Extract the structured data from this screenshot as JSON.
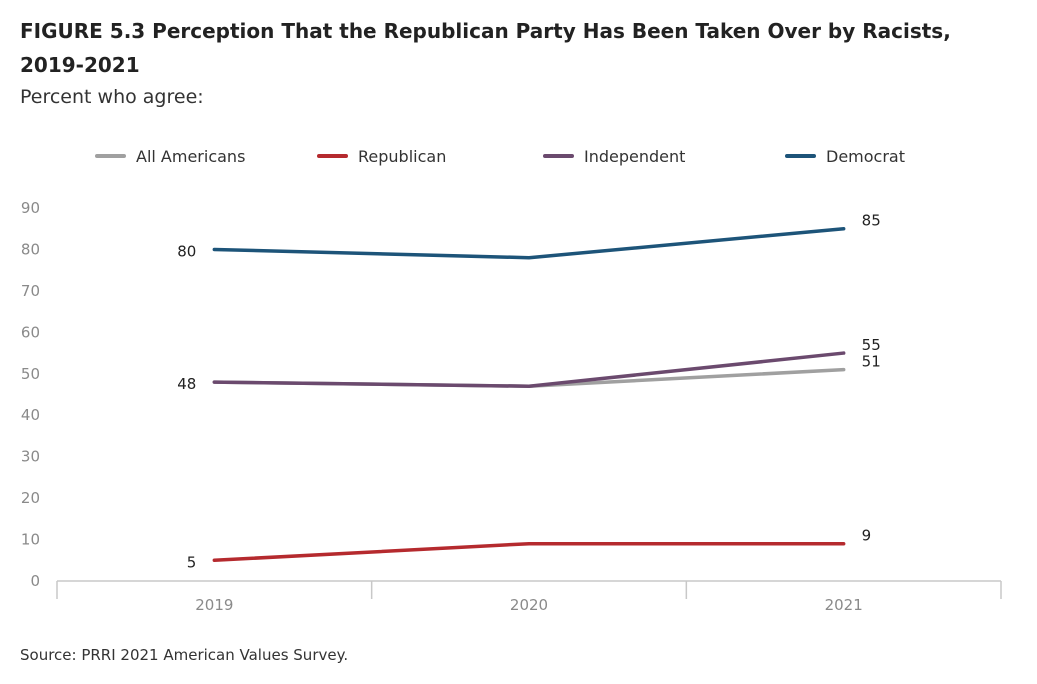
{
  "title": "FIGURE 5.3  Perception That the Republican Party Has Been Taken Over by Racists, 2019-2021",
  "subtitle": "Percent who agree:",
  "source": "Source: PRRI 2021 American Values Survey.",
  "chart_data": {
    "type": "line",
    "categories": [
      "2019",
      "2020",
      "2021"
    ],
    "ylim": [
      0,
      90
    ],
    "yticks": [
      0,
      10,
      20,
      30,
      40,
      50,
      60,
      70,
      80,
      90
    ],
    "grid": false,
    "legend_position": "top",
    "series": [
      {
        "name": "All Americans",
        "color": "#a0a0a0",
        "values": [
          48,
          47,
          51
        ],
        "labels": [
          "",
          "",
          "51"
        ]
      },
      {
        "name": "Republican",
        "color": "#b52a2e",
        "values": [
          5,
          9,
          9
        ],
        "labels": [
          "5",
          "",
          "9"
        ]
      },
      {
        "name": "Independent",
        "color": "#6b4a6e",
        "values": [
          48,
          47,
          55
        ],
        "labels": [
          "48",
          "",
          "55"
        ]
      },
      {
        "name": "Democrat",
        "color": "#1d5479",
        "values": [
          80,
          78,
          85
        ],
        "labels": [
          "80",
          "",
          "85"
        ]
      }
    ]
  }
}
